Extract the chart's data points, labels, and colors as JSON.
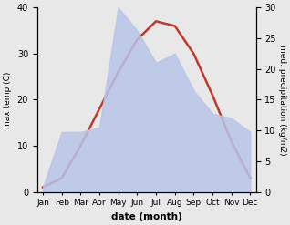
{
  "months": [
    "Jan",
    "Feb",
    "Mar",
    "Apr",
    "May",
    "Jun",
    "Jul",
    "Aug",
    "Sep",
    "Oct",
    "Nov",
    "Dec"
  ],
  "temp": [
    1,
    3,
    10,
    18,
    26,
    33,
    37,
    36,
    30,
    21,
    11,
    3
  ],
  "precip": [
    1,
    13,
    13,
    14,
    40,
    35,
    28,
    30,
    22,
    17,
    16,
    13
  ],
  "temp_color": "#c0392b",
  "precip_fill_color": "#b8c4e8",
  "left_label": "max temp (C)",
  "right_label": "med. precipitation (kg/m2)",
  "xlabel": "date (month)",
  "ylim_left": [
    0,
    40
  ],
  "ylim_right": [
    0,
    30
  ],
  "bg_color": "#e8e8e8"
}
